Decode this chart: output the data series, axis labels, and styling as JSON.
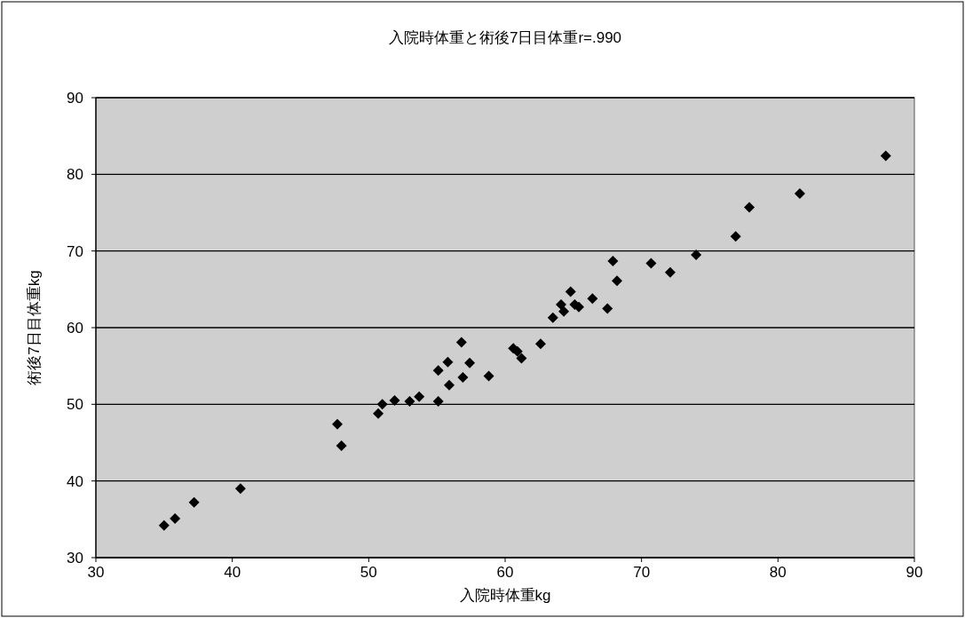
{
  "chart_data": {
    "type": "scatter",
    "title": "入院時体重と術後7日目体重r=.990",
    "xlabel": "入院時体重kg",
    "ylabel": "術後7日目体重kg",
    "series": [
      {
        "color": "#000000",
        "x": [
          35.0,
          35.8,
          37.2,
          40.6,
          47.7,
          48.0,
          50.7,
          51.0,
          51.9,
          53.0,
          53.7,
          55.1,
          55.1,
          55.9,
          55.8,
          56.8,
          56.9,
          57.4,
          58.8,
          60.6,
          60.9,
          61.2,
          62.6,
          63.5,
          64.1,
          64.3,
          64.8,
          65.1,
          65.4,
          66.4,
          67.5,
          68.2,
          67.9,
          70.7,
          72.1,
          74.0,
          76.9,
          77.9,
          81.6,
          87.9
        ],
        "values": [
          34.2,
          35.1,
          37.2,
          39.0,
          47.4,
          44.6,
          48.8,
          50.0,
          50.5,
          50.4,
          51.0,
          50.4,
          54.4,
          52.5,
          55.5,
          58.1,
          53.5,
          55.4,
          53.7,
          57.3,
          56.9,
          56.0,
          57.9,
          61.3,
          63.0,
          62.1,
          64.7,
          63.0,
          62.7,
          63.8,
          62.5,
          66.1,
          68.7,
          68.4,
          67.2,
          69.5,
          71.9,
          75.7,
          77.5,
          82.4
        ]
      }
    ],
    "xlim": [
      30,
      90
    ],
    "ylim": [
      30,
      90
    ],
    "xticks": [
      30,
      40,
      50,
      60,
      70,
      80,
      90
    ],
    "yticks": [
      30,
      40,
      50,
      60,
      70,
      80,
      90
    ],
    "grid": "y",
    "marker": "diamond"
  }
}
